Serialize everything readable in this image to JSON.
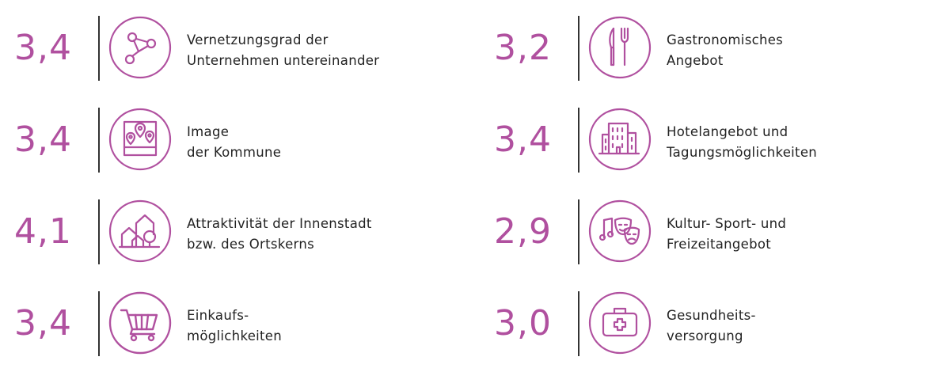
{
  "accent_color": "#b0509f",
  "items": [
    {
      "score": "3,4",
      "icon": "network-icon",
      "line1": "Vernetzungsgrad der",
      "line2": "Unternehmen untereinander"
    },
    {
      "score": "3,4",
      "icon": "map-pins-icon",
      "line1": "Image",
      "line2": "der Kommune"
    },
    {
      "score": "4,1",
      "icon": "town-houses-icon",
      "line1": "Attraktivität der Innenstadt",
      "line2": "bzw. des Ortskerns"
    },
    {
      "score": "3,4",
      "icon": "shopping-cart-icon",
      "line1": "Einkaufs-",
      "line2": "möglichkeiten"
    },
    {
      "score": "3,2",
      "icon": "knife-fork-icon",
      "line1": "Gastronomisches",
      "line2": "Angebot"
    },
    {
      "score": "3,4",
      "icon": "hotel-building-icon",
      "line1": "Hotelangebot und",
      "line2": "Tagungsmöglichkeiten"
    },
    {
      "score": "2,9",
      "icon": "theater-masks-icon",
      "line1": "Kultur- Sport- und",
      "line2": "Freizeitangebot"
    },
    {
      "score": "3,0",
      "icon": "first-aid-kit-icon",
      "line1": "Gesundheits-",
      "line2": "versorgung"
    }
  ]
}
